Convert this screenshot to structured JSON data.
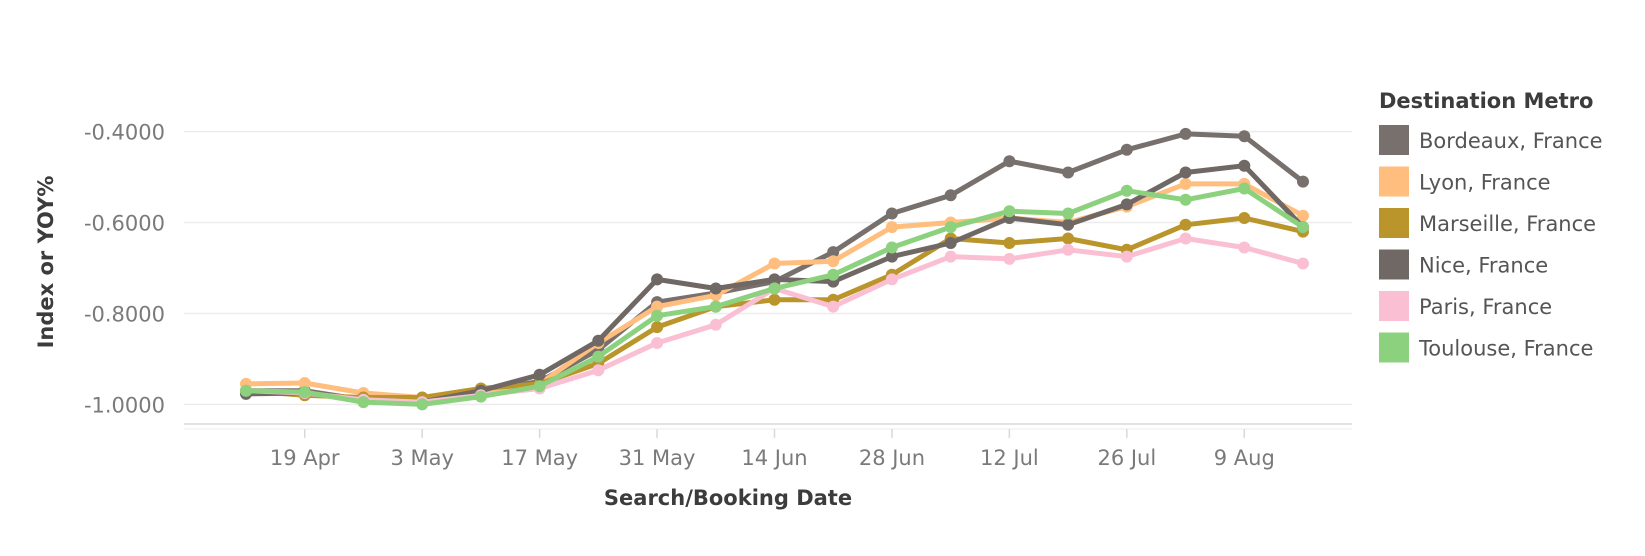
{
  "chart_data": {
    "type": "line",
    "title": "",
    "xlabel": "Search/Booking Date",
    "ylabel": "Index or YOY%",
    "x": [
      "2020-04-12",
      "2020-04-19",
      "2020-04-26",
      "2020-05-03",
      "2020-05-10",
      "2020-05-17",
      "2020-05-24",
      "2020-05-31",
      "2020-06-07",
      "2020-06-14",
      "2020-06-21",
      "2020-06-28",
      "2020-07-05",
      "2020-07-12",
      "2020-07-19",
      "2020-07-26",
      "2020-08-02",
      "2020-08-09",
      "2020-08-16"
    ],
    "x_ticks": [
      {
        "date": "2020-04-19",
        "label": "19 Apr"
      },
      {
        "date": "2020-05-03",
        "label": "3 May"
      },
      {
        "date": "2020-05-17",
        "label": "17 May"
      },
      {
        "date": "2020-05-31",
        "label": "31 May"
      },
      {
        "date": "2020-06-14",
        "label": "14 Jun"
      },
      {
        "date": "2020-06-28",
        "label": "28 Jun"
      },
      {
        "date": "2020-07-12",
        "label": "12 Jul"
      },
      {
        "date": "2020-07-26",
        "label": "26 Jul"
      },
      {
        "date": "2020-08-09",
        "label": "9 Aug"
      }
    ],
    "y_ticks": [
      {
        "value": -0.4,
        "label": "-0.4000"
      },
      {
        "value": -0.6,
        "label": "-0.6000"
      },
      {
        "value": -0.8,
        "label": "-0.8000"
      },
      {
        "value": -1.0,
        "label": "-1.0000"
      }
    ],
    "ylim": [
      -1.03,
      -0.37
    ],
    "grid": "horizontal",
    "legend_title": "Destination Metro",
    "legend_position": "right",
    "series": [
      {
        "name": "Bordeaux, France",
        "color": "#77706d",
        "values": [
          -0.97,
          -0.97,
          -0.99,
          -0.99,
          -0.97,
          -0.95,
          -0.88,
          -0.775,
          -0.755,
          -0.73,
          -0.665,
          -0.58,
          -0.54,
          -0.465,
          -0.49,
          -0.44,
          -0.405,
          -0.41,
          -0.51
        ]
      },
      {
        "name": "Lyon, France",
        "color": "#ffbe7d",
        "values": [
          -0.955,
          -0.953,
          -0.975,
          -0.985,
          -0.97,
          -0.955,
          -0.865,
          -0.785,
          -0.76,
          -0.69,
          -0.685,
          -0.61,
          -0.6,
          -0.59,
          -0.6,
          -0.565,
          -0.515,
          -0.515,
          -0.585
        ]
      },
      {
        "name": "Marseille, France",
        "color": "#b9952b",
        "values": [
          -0.97,
          -0.98,
          -0.985,
          -0.985,
          -0.965,
          -0.955,
          -0.91,
          -0.83,
          -0.785,
          -0.77,
          -0.77,
          -0.715,
          -0.635,
          -0.645,
          -0.635,
          -0.66,
          -0.605,
          -0.59,
          -0.62
        ]
      },
      {
        "name": "Nice, France",
        "color": "#6f6865",
        "values": [
          -0.977,
          -0.975,
          -0.99,
          -0.995,
          -0.97,
          -0.935,
          -0.86,
          -0.725,
          -0.745,
          -0.725,
          -0.73,
          -0.675,
          -0.645,
          -0.59,
          -0.605,
          -0.56,
          -0.49,
          -0.475,
          -0.61
        ]
      },
      {
        "name": "Paris, France",
        "color": "#fbbfd3",
        "values": [
          -0.97,
          -0.975,
          -0.99,
          -0.995,
          -0.98,
          -0.965,
          -0.925,
          -0.865,
          -0.825,
          -0.745,
          -0.785,
          -0.725,
          -0.675,
          -0.68,
          -0.66,
          -0.675,
          -0.635,
          -0.655,
          -0.69
        ]
      },
      {
        "name": "Toulouse, France",
        "color": "#8cd17d",
        "values": [
          -0.97,
          -0.973,
          -0.995,
          -1.0,
          -0.983,
          -0.96,
          -0.895,
          -0.805,
          -0.785,
          -0.745,
          -0.715,
          -0.655,
          -0.61,
          -0.575,
          -0.58,
          -0.53,
          -0.55,
          -0.525,
          -0.61
        ]
      }
    ]
  }
}
